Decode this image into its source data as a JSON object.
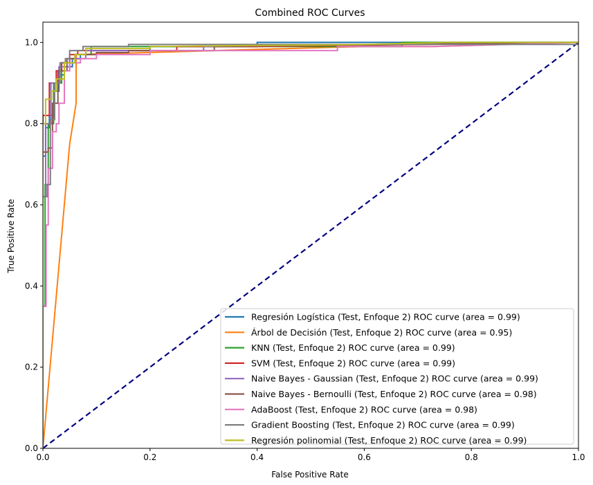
{
  "chart_data": {
    "type": "line",
    "title": "Combined ROC Curves",
    "xlabel": "False Positive Rate",
    "ylabel": "True Positive Rate",
    "xlim": [
      0.0,
      1.0
    ],
    "ylim": [
      0.0,
      1.05
    ],
    "xticks": [
      "0.0",
      "0.2",
      "0.4",
      "0.6",
      "0.8",
      "1.0"
    ],
    "yticks": [
      "0.0",
      "0.2",
      "0.4",
      "0.6",
      "0.8",
      "1.0"
    ],
    "grid": false,
    "legend_position": "lower-right",
    "diagonal": {
      "color": "#000080",
      "style": "dashed",
      "points": [
        [
          0,
          0
        ],
        [
          1,
          1
        ]
      ]
    },
    "series": [
      {
        "name": "Regresión Logística (Test, Enfoque 2) ROC curve (area = 0.99)",
        "color": "#1f77b4",
        "points": [
          [
            0,
            0
          ],
          [
            0,
            0.72
          ],
          [
            0.005,
            0.72
          ],
          [
            0.005,
            0.79
          ],
          [
            0.012,
            0.79
          ],
          [
            0.012,
            0.82
          ],
          [
            0.02,
            0.82
          ],
          [
            0.02,
            0.88
          ],
          [
            0.03,
            0.88
          ],
          [
            0.03,
            0.92
          ],
          [
            0.04,
            0.92
          ],
          [
            0.04,
            0.94
          ],
          [
            0.055,
            0.94
          ],
          [
            0.055,
            0.96
          ],
          [
            0.07,
            0.96
          ],
          [
            0.07,
            0.97
          ],
          [
            0.09,
            0.97
          ],
          [
            0.09,
            0.98
          ],
          [
            0.2,
            0.98
          ],
          [
            0.2,
            0.99
          ],
          [
            0.4,
            0.99
          ],
          [
            0.4,
            1.0
          ],
          [
            1.0,
            1.0
          ]
        ]
      },
      {
        "name": "Árbol de Decisión (Test, Enfoque 2) ROC curve (area = 0.95)",
        "color": "#ff7f0e",
        "points": [
          [
            0,
            0
          ],
          [
            0.05,
            0.75
          ],
          [
            0.062,
            0.85
          ],
          [
            0.062,
            0.97
          ],
          [
            0.32,
            0.98
          ],
          [
            0.6,
            0.99
          ],
          [
            0.73,
            0.99
          ],
          [
            1.0,
            1.0
          ]
        ]
      },
      {
        "name": "KNN (Test, Enfoque 2) ROC curve (area = 0.99)",
        "color": "#2ca02c",
        "points": [
          [
            0,
            0
          ],
          [
            0,
            0.35
          ],
          [
            0.004,
            0.35
          ],
          [
            0.004,
            0.65
          ],
          [
            0.01,
            0.65
          ],
          [
            0.01,
            0.8
          ],
          [
            0.02,
            0.8
          ],
          [
            0.02,
            0.9
          ],
          [
            0.035,
            0.9
          ],
          [
            0.035,
            0.95
          ],
          [
            0.06,
            0.95
          ],
          [
            0.06,
            0.97
          ],
          [
            0.09,
            0.97
          ],
          [
            0.09,
            0.99
          ],
          [
            0.67,
            0.99
          ],
          [
            0.67,
            1.0
          ],
          [
            0.76,
            1.0
          ],
          [
            1.0,
            1.0
          ]
        ]
      },
      {
        "name": "SVM (Test, Enfoque 2) ROC curve (area = 0.99)",
        "color": "#d62728",
        "points": [
          [
            0,
            0
          ],
          [
            0,
            0.82
          ],
          [
            0.012,
            0.82
          ],
          [
            0.012,
            0.9
          ],
          [
            0.025,
            0.9
          ],
          [
            0.025,
            0.93
          ],
          [
            0.035,
            0.93
          ],
          [
            0.035,
            0.95
          ],
          [
            0.05,
            0.95
          ],
          [
            0.05,
            0.97
          ],
          [
            0.065,
            0.97
          ],
          [
            0.065,
            0.98
          ],
          [
            0.25,
            0.98
          ],
          [
            0.25,
            0.99
          ],
          [
            0.4,
            0.99
          ],
          [
            1.0,
            1.0
          ]
        ]
      },
      {
        "name": "Naive Bayes - Gaussian (Test, Enfoque 2) ROC curve (area = 0.99)",
        "color": "#9467bd",
        "points": [
          [
            0,
            0
          ],
          [
            0,
            0.62
          ],
          [
            0.005,
            0.62
          ],
          [
            0.005,
            0.8
          ],
          [
            0.015,
            0.8
          ],
          [
            0.015,
            0.9
          ],
          [
            0.03,
            0.9
          ],
          [
            0.03,
            0.94
          ],
          [
            0.05,
            0.94
          ],
          [
            0.05,
            0.96
          ],
          [
            0.08,
            0.96
          ],
          [
            0.08,
            0.98
          ],
          [
            0.3,
            0.98
          ],
          [
            0.3,
            0.99
          ],
          [
            1.0,
            1.0
          ]
        ]
      },
      {
        "name": "Naive Bayes - Bernoulli (Test, Enfoque 2) ROC curve (area = 0.98)",
        "color": "#8c564b",
        "points": [
          [
            0,
            0
          ],
          [
            0,
            0.73
          ],
          [
            0.01,
            0.73
          ],
          [
            0.01,
            0.74
          ],
          [
            0.018,
            0.74
          ],
          [
            0.018,
            0.85
          ],
          [
            0.028,
            0.85
          ],
          [
            0.028,
            0.93
          ],
          [
            0.045,
            0.93
          ],
          [
            0.045,
            0.96
          ],
          [
            0.06,
            0.96
          ],
          [
            0.06,
            0.97
          ],
          [
            0.1,
            0.97
          ],
          [
            0.1,
            0.975
          ],
          [
            0.16,
            0.975
          ],
          [
            0.16,
            0.98
          ],
          [
            0.32,
            0.98
          ],
          [
            0.32,
            0.99
          ],
          [
            1.0,
            1.0
          ]
        ]
      },
      {
        "name": "AdaBoost (Test, Enfoque 2) ROC curve (area = 0.98)",
        "color": "#e377c2",
        "points": [
          [
            0,
            0
          ],
          [
            0,
            0.35
          ],
          [
            0.006,
            0.35
          ],
          [
            0.006,
            0.55
          ],
          [
            0.01,
            0.55
          ],
          [
            0.01,
            0.69
          ],
          [
            0.018,
            0.69
          ],
          [
            0.018,
            0.78
          ],
          [
            0.025,
            0.78
          ],
          [
            0.025,
            0.8
          ],
          [
            0.03,
            0.8
          ],
          [
            0.03,
            0.85
          ],
          [
            0.04,
            0.85
          ],
          [
            0.04,
            0.93
          ],
          [
            0.05,
            0.93
          ],
          [
            0.05,
            0.95
          ],
          [
            0.07,
            0.95
          ],
          [
            0.07,
            0.96
          ],
          [
            0.1,
            0.96
          ],
          [
            0.1,
            0.97
          ],
          [
            0.2,
            0.97
          ],
          [
            0.2,
            0.98
          ],
          [
            0.55,
            0.98
          ],
          [
            0.55,
            0.99
          ],
          [
            0.73,
            0.99
          ],
          [
            1.0,
            1.0
          ]
        ]
      },
      {
        "name": "Gradient Boosting (Test, Enfoque 2) ROC curve (area = 0.99)",
        "color": "#7f7f7f",
        "points": [
          [
            0,
            0
          ],
          [
            0,
            0.62
          ],
          [
            0.008,
            0.62
          ],
          [
            0.008,
            0.65
          ],
          [
            0.014,
            0.65
          ],
          [
            0.014,
            0.81
          ],
          [
            0.022,
            0.81
          ],
          [
            0.022,
            0.9
          ],
          [
            0.032,
            0.9
          ],
          [
            0.032,
            0.95
          ],
          [
            0.042,
            0.95
          ],
          [
            0.042,
            0.96
          ],
          [
            0.05,
            0.96
          ],
          [
            0.05,
            0.98
          ],
          [
            0.075,
            0.98
          ],
          [
            0.075,
            0.99
          ],
          [
            0.16,
            0.99
          ],
          [
            0.16,
            0.995
          ],
          [
            1.0,
            0.995
          ]
        ]
      },
      {
        "name": "Regresión polinomial (Test, Enfoque 2) ROC curve (area = 0.99)",
        "color": "#bcbd22",
        "points": [
          [
            0,
            0
          ],
          [
            0,
            0.8
          ],
          [
            0.005,
            0.8
          ],
          [
            0.005,
            0.86
          ],
          [
            0.016,
            0.86
          ],
          [
            0.016,
            0.88
          ],
          [
            0.025,
            0.88
          ],
          [
            0.025,
            0.91
          ],
          [
            0.04,
            0.91
          ],
          [
            0.04,
            0.95
          ],
          [
            0.06,
            0.95
          ],
          [
            0.06,
            0.97
          ],
          [
            0.08,
            0.97
          ],
          [
            0.08,
            0.985
          ],
          [
            0.2,
            0.985
          ],
          [
            0.2,
            0.99
          ],
          [
            0.6,
            0.995
          ],
          [
            0.75,
            1.0
          ],
          [
            1.0,
            1.0
          ]
        ]
      }
    ]
  }
}
